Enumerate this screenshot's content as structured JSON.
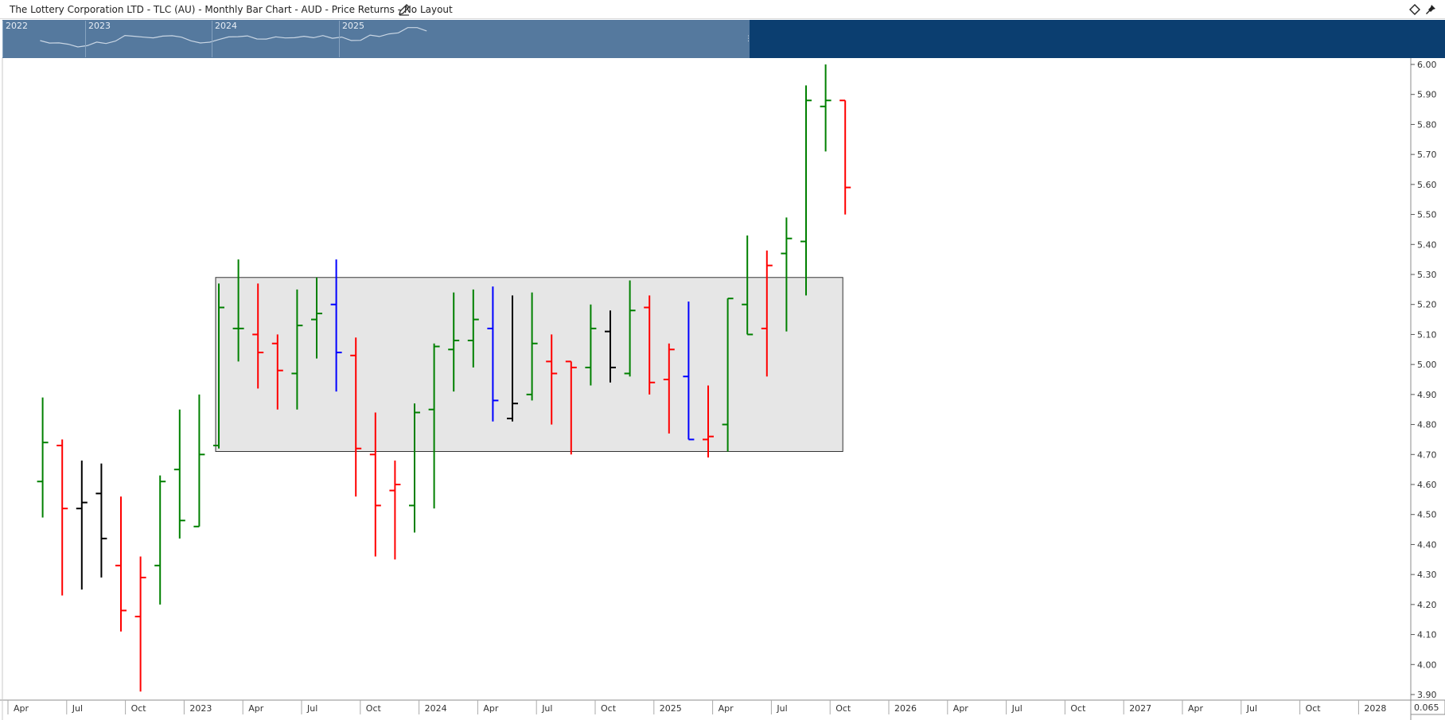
{
  "header": {
    "title": "The Lottery Corporation LTD - TLC (AU) - Monthly Bar Chart - AUD - Price Returns - No Layout",
    "edit_icon": "pencil-icon",
    "toolbar_icons": [
      "diamond-icon",
      "pin-icon"
    ]
  },
  "navigator": {
    "years": [
      "2022",
      "2023",
      "2024",
      "2025"
    ]
  },
  "colors": {
    "up": "#008000",
    "down": "#ff0000",
    "neutral": "#000000",
    "blue": "#0000ff",
    "range_box": "#e6e6e6",
    "navigator_dark": "#0b3e70",
    "navigator_window": "#55799e"
  },
  "chart_data": {
    "type": "ohlc",
    "title": "The Lottery Corporation LTD - TLC (AU) - Monthly Bar Chart - AUD - Price Returns - No Layout",
    "currency": "AUD",
    "ylim": [
      3.9,
      6.0
    ],
    "ylabels": [
      "6.00",
      "5.90",
      "5.80",
      "5.70",
      "5.60",
      "5.50",
      "5.40",
      "5.30",
      "5.20",
      "5.10",
      "5.00",
      "4.90",
      "4.80",
      "4.70",
      "4.60",
      "4.50",
      "4.40",
      "4.30",
      "4.20",
      "4.10",
      "4.00",
      "3.90"
    ],
    "xlabels": [
      "Apr",
      "Jul",
      "Oct",
      "2023",
      "Apr",
      "Jul",
      "Oct",
      "2024",
      "Apr",
      "Jul",
      "Oct",
      "2025",
      "Apr",
      "Jul",
      "Oct",
      "2026",
      "Apr",
      "Jul",
      "Oct",
      "2027",
      "Apr",
      "Jul",
      "Oct",
      "2028"
    ],
    "axis_corner_label": "0.065",
    "grid": false,
    "range_box": {
      "from": "2023-02",
      "to": "2025-10",
      "low": 4.71,
      "high": 5.29
    },
    "bars": [
      {
        "date": "2022-05",
        "open": 4.61,
        "high": 4.89,
        "low": 4.49,
        "close": 4.74,
        "color": "up"
      },
      {
        "date": "2022-06",
        "open": 4.73,
        "high": 4.75,
        "low": 4.23,
        "close": 4.52,
        "color": "down"
      },
      {
        "date": "2022-07",
        "open": 4.52,
        "high": 4.68,
        "low": 4.25,
        "close": 4.54,
        "color": "neutral"
      },
      {
        "date": "2022-08",
        "open": 4.57,
        "high": 4.67,
        "low": 4.29,
        "close": 4.42,
        "color": "neutral"
      },
      {
        "date": "2022-09",
        "open": 4.33,
        "high": 4.56,
        "low": 4.11,
        "close": 4.18,
        "color": "down"
      },
      {
        "date": "2022-10",
        "open": 4.16,
        "high": 4.36,
        "low": 3.91,
        "close": 4.29,
        "color": "down"
      },
      {
        "date": "2022-11",
        "open": 4.33,
        "high": 4.63,
        "low": 4.2,
        "close": 4.61,
        "color": "up"
      },
      {
        "date": "2022-12",
        "open": 4.65,
        "high": 4.85,
        "low": 4.42,
        "close": 4.48,
        "color": "up"
      },
      {
        "date": "2023-01",
        "open": 4.46,
        "high": 4.9,
        "low": 4.46,
        "close": 4.7,
        "color": "up"
      },
      {
        "date": "2023-02",
        "open": 4.73,
        "high": 5.27,
        "low": 4.72,
        "close": 5.19,
        "color": "up"
      },
      {
        "date": "2023-03",
        "open": 5.12,
        "high": 5.35,
        "low": 5.01,
        "close": 5.12,
        "color": "up"
      },
      {
        "date": "2023-04",
        "open": 5.1,
        "high": 5.27,
        "low": 4.92,
        "close": 5.04,
        "color": "down"
      },
      {
        "date": "2023-05",
        "open": 5.07,
        "high": 5.1,
        "low": 4.85,
        "close": 4.98,
        "color": "down"
      },
      {
        "date": "2023-06",
        "open": 4.97,
        "high": 5.25,
        "low": 4.85,
        "close": 5.13,
        "color": "up"
      },
      {
        "date": "2023-07",
        "open": 5.15,
        "high": 5.29,
        "low": 5.02,
        "close": 5.17,
        "color": "up"
      },
      {
        "date": "2023-08",
        "open": 5.2,
        "high": 5.35,
        "low": 4.91,
        "close": 5.04,
        "color": "blue"
      },
      {
        "date": "2023-09",
        "open": 5.03,
        "high": 5.09,
        "low": 4.56,
        "close": 4.72,
        "color": "down"
      },
      {
        "date": "2023-10",
        "open": 4.7,
        "high": 4.84,
        "low": 4.36,
        "close": 4.53,
        "color": "down"
      },
      {
        "date": "2023-11",
        "open": 4.58,
        "high": 4.68,
        "low": 4.35,
        "close": 4.6,
        "color": "down"
      },
      {
        "date": "2023-12",
        "open": 4.53,
        "high": 4.87,
        "low": 4.44,
        "close": 4.84,
        "color": "up"
      },
      {
        "date": "2024-01",
        "open": 4.85,
        "high": 5.07,
        "low": 4.52,
        "close": 5.06,
        "color": "up"
      },
      {
        "date": "2024-02",
        "open": 5.05,
        "high": 5.24,
        "low": 4.91,
        "close": 5.08,
        "color": "up"
      },
      {
        "date": "2024-03",
        "open": 5.08,
        "high": 5.25,
        "low": 4.99,
        "close": 5.15,
        "color": "up"
      },
      {
        "date": "2024-04",
        "open": 5.12,
        "high": 5.26,
        "low": 4.81,
        "close": 4.88,
        "color": "blue"
      },
      {
        "date": "2024-05",
        "open": 4.82,
        "high": 5.23,
        "low": 4.81,
        "close": 4.87,
        "color": "neutral"
      },
      {
        "date": "2024-06",
        "open": 4.9,
        "high": 5.24,
        "low": 4.88,
        "close": 5.07,
        "color": "up"
      },
      {
        "date": "2024-07",
        "open": 5.01,
        "high": 5.1,
        "low": 4.8,
        "close": 4.97,
        "color": "down"
      },
      {
        "date": "2024-08",
        "open": 5.01,
        "high": 5.01,
        "low": 4.7,
        "close": 4.99,
        "color": "down"
      },
      {
        "date": "2024-09",
        "open": 4.99,
        "high": 5.2,
        "low": 4.93,
        "close": 5.12,
        "color": "up"
      },
      {
        "date": "2024-10",
        "open": 5.11,
        "high": 5.18,
        "low": 4.94,
        "close": 4.99,
        "color": "neutral"
      },
      {
        "date": "2024-11",
        "open": 4.97,
        "high": 5.28,
        "low": 4.96,
        "close": 5.18,
        "color": "up"
      },
      {
        "date": "2024-12",
        "open": 5.19,
        "high": 5.23,
        "low": 4.9,
        "close": 4.94,
        "color": "down"
      },
      {
        "date": "2025-01",
        "open": 4.95,
        "high": 5.07,
        "low": 4.77,
        "close": 5.05,
        "color": "down"
      },
      {
        "date": "2025-02",
        "open": 4.96,
        "high": 5.21,
        "low": 4.75,
        "close": 4.75,
        "color": "blue"
      },
      {
        "date": "2025-03",
        "open": 4.75,
        "high": 4.93,
        "low": 4.69,
        "close": 4.76,
        "color": "down"
      },
      {
        "date": "2025-04",
        "open": 4.8,
        "high": 5.22,
        "low": 4.71,
        "close": 5.22,
        "color": "up"
      },
      {
        "date": "2025-05",
        "open": 5.2,
        "high": 5.43,
        "low": 5.1,
        "close": 5.1,
        "color": "up"
      },
      {
        "date": "2025-06",
        "open": 5.12,
        "high": 5.38,
        "low": 4.96,
        "close": 5.33,
        "color": "down"
      },
      {
        "date": "2025-07",
        "open": 5.37,
        "high": 5.49,
        "low": 5.11,
        "close": 5.42,
        "color": "up"
      },
      {
        "date": "2025-08",
        "open": 5.41,
        "high": 5.93,
        "low": 5.23,
        "close": 5.88,
        "color": "up"
      },
      {
        "date": "2025-09",
        "open": 5.86,
        "high": 6.0,
        "low": 5.71,
        "close": 5.88,
        "color": "up"
      },
      {
        "date": "2025-10",
        "open": 5.88,
        "high": 5.88,
        "low": 5.5,
        "close": 5.59,
        "color": "down"
      }
    ]
  }
}
